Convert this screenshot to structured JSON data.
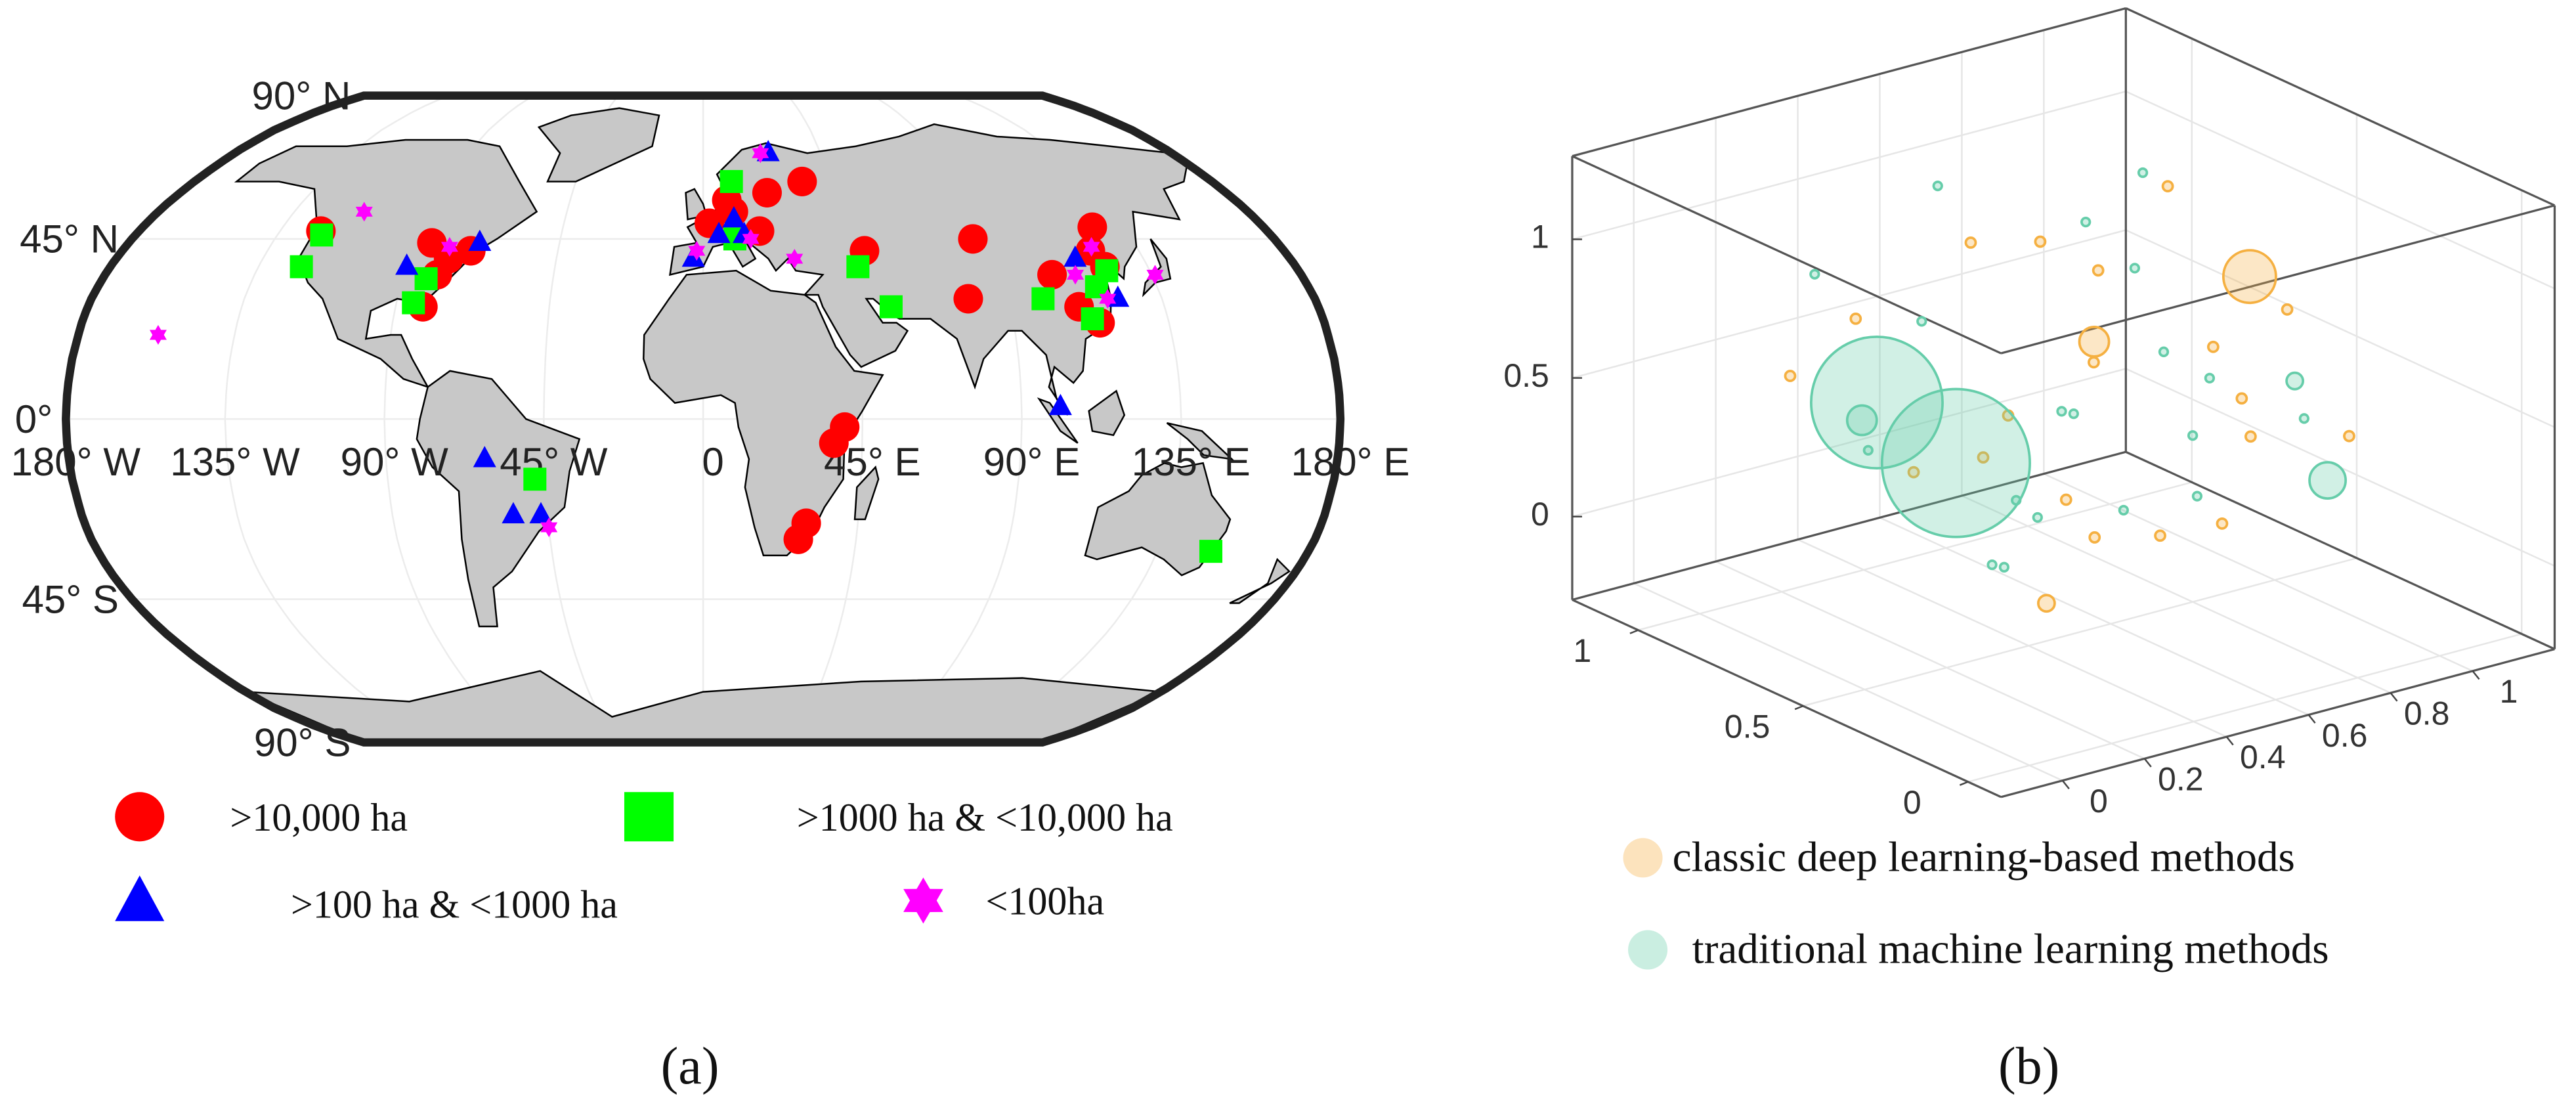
{
  "chart_data": [
    {
      "type": "map",
      "label": "(a)",
      "xlim": [
        -180,
        180
      ],
      "ylim": [
        -90,
        90
      ],
      "xticks": [
        {
          "value": -180,
          "label": "180° W"
        },
        {
          "value": -135,
          "label": "135° W"
        },
        {
          "value": -90,
          "label": "90° W"
        },
        {
          "value": -45,
          "label": "45° W"
        },
        0,
        {
          "value": 45,
          "label": "45° E"
        },
        {
          "value": 90,
          "label": "90° E"
        },
        {
          "value": 135,
          "label": "135° E"
        },
        {
          "value": 180,
          "label": "180° E"
        }
      ],
      "yticks": [
        {
          "value": 90,
          "label": "90° N"
        },
        {
          "value": 45,
          "label": "45° N"
        },
        {
          "value": 0,
          "label": "0°"
        },
        {
          "value": -45,
          "label": "45° S"
        },
        {
          "value": -90,
          "label": "90° S"
        }
      ],
      "grid": true,
      "series": [
        {
          "name": ">10,000 ha",
          "color": "#ff0000",
          "marker": "circle",
          "x": [
            -122,
            -85,
            -78,
            -80,
            -72,
            -82,
            2,
            10,
            8,
            18,
            22,
            35,
            50,
            85,
            125,
            105,
            78,
            110,
            115,
            122,
            120,
            40,
            37,
            30,
            28
          ],
          "values": [
            47,
            44,
            40,
            36,
            42,
            28,
            49,
            52,
            55,
            47,
            57,
            60,
            42,
            45,
            48,
            36,
            30,
            28,
            24,
            38,
            42,
            -2,
            -6,
            -26,
            -30
          ]
        },
        {
          "name": ">1000 ha & <10,000 ha",
          "color": "#00ff00",
          "marker": "square",
          "x": [
            -121,
            -122,
            -83,
            -85,
            -48,
            10,
            10,
            47,
            55,
            100,
            113,
            117,
            122,
            151
          ],
          "values": [
            46,
            38,
            35,
            29,
            -15,
            60,
            45,
            38,
            28,
            30,
            25,
            33,
            37,
            -33
          ]
        },
        {
          "name": ">100 ha & <1000 ha",
          "color": "#0000ff",
          "marker": "triangle",
          "x": [
            -90,
            -70,
            -62,
            -55,
            -47,
            -3,
            5,
            10,
            13,
            25,
            114,
            101,
            122
          ],
          "values": [
            38,
            44,
            -10,
            -24,
            -24,
            40,
            46,
            50,
            46,
            68,
            40,
            3,
            30
          ]
        },
        {
          "name": "<100ha",
          "color": "#ff00ff",
          "marker": "star",
          "x": [
            -112,
            -79,
            -157,
            28,
            22,
            112,
            119,
            121,
            136,
            -45,
            -2,
            15
          ],
          "values": [
            52,
            43,
            21,
            40,
            68,
            36,
            30,
            43,
            36,
            -27,
            42,
            45
          ]
        }
      ]
    },
    {
      "type": "scatter3d",
      "label": "(b)",
      "xlim": [
        -0.15,
        1.2
      ],
      "ylim": [
        -0.1,
        1.2
      ],
      "zlim": [
        -0.3,
        1.3
      ],
      "xticks": [
        0,
        0.2,
        0.4,
        0.6,
        0.8,
        1
      ],
      "yticks": [
        0,
        0.5,
        1
      ],
      "zticks": [
        0,
        0.5,
        1
      ],
      "grid": true,
      "series": [
        {
          "name": "classic deep learning-based methods",
          "color": "#f5b041",
          "x": [
            0.77,
            0.6,
            0.17,
            0.9,
            0.5,
            0.3,
            0.7,
            0.85,
            0.4,
            0.65,
            0.95,
            0.2,
            0.55,
            0.8,
            0.35,
            0.1,
            0.6,
            0.9,
            0.45,
            0.75,
            0.25,
            1.0
          ],
          "y": [
            0.29,
            0.55,
            0.16,
            0.7,
            0.8,
            0.9,
            0.2,
            0.5,
            0.3,
            0.6,
            0.4,
            0.6,
            0.1,
            0.8,
            0.5,
            0.85,
            0.35,
            0.15,
            0.7,
            0.9,
            0.2,
            0.6
          ],
          "values": [
            1.0,
            0.69,
            0.13,
            1.05,
            0.95,
            0.7,
            0.5,
            0.6,
            0.2,
            0.9,
            0.75,
            0.35,
            0.3,
            0.4,
            0.55,
            0.6,
            0.1,
            0.45,
            0.25,
            0.8,
            0.45,
            0.3
          ],
          "sizes": [
            16,
            9,
            5,
            3,
            3,
            3,
            3,
            3,
            3,
            3,
            3,
            3,
            3,
            3,
            3,
            3,
            3,
            3,
            3,
            3,
            3,
            3
          ]
        },
        {
          "name": "traditional machine learning methods",
          "color": "#66cdaa",
          "x": [
            0.07,
            0.11,
            0.09,
            0.96,
            0.88,
            0.2,
            0.3,
            0.5,
            0.7,
            0.4,
            0.6,
            0.15,
            0.8,
            0.35,
            0.55,
            0.9,
            0.25,
            0.65,
            0.1,
            0.45,
            1.0,
            0.75,
            0.3,
            0.85
          ],
          "y": [
            0.55,
            0.36,
            0.62,
            0.29,
            0.29,
            0.9,
            0.7,
            0.9,
            0.7,
            0.4,
            0.2,
            0.3,
            0.5,
            0.15,
            0.55,
            0.8,
            0.8,
            0.3,
            0.1,
            0.6,
            0.9,
            0.1,
            0.45,
            0.65
          ],
          "values": [
            0.68,
            0.55,
            0.57,
            0.19,
            0.58,
            0.9,
            0.8,
            1.1,
            1.0,
            0.6,
            0.75,
            0.2,
            0.3,
            0.4,
            0.45,
            0.7,
            0.3,
            0.25,
            0.5,
            0.15,
            0.95,
            0.6,
            0.05,
            0.5
          ],
          "sizes": [
            40,
            45,
            9,
            11,
            5,
            2.5,
            2.5,
            2.5,
            2.5,
            2.5,
            2.5,
            2.5,
            2.5,
            2.5,
            2.5,
            2.5,
            2.5,
            2.5,
            2.5,
            2.5,
            2.5,
            2.5,
            2.5,
            2.5
          ]
        }
      ]
    }
  ]
}
